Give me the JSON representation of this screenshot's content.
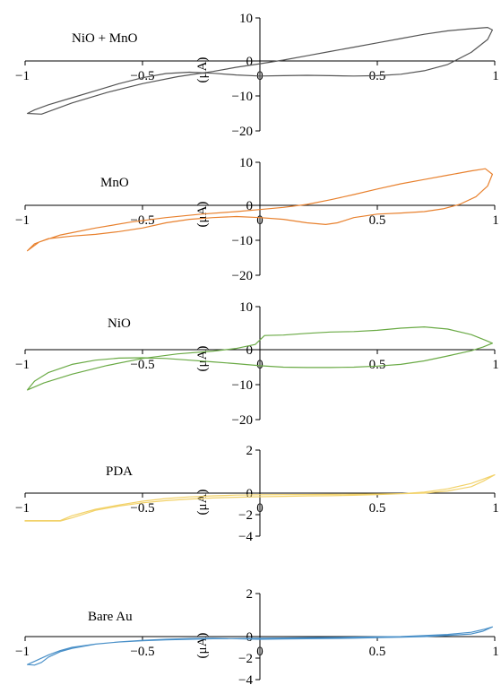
{
  "chart_data": [
    {
      "type": "line",
      "label": "NiO + MnO",
      "color": "#555555",
      "unit_label": "(μA)",
      "xlim": [
        -1,
        1
      ],
      "ylim": [
        -20,
        10
      ],
      "x_ticks": [
        -1,
        -0.5,
        0,
        0.5,
        1
      ],
      "x_tick_labels": [
        "−1",
        "−0.5",
        "0",
        "0.5",
        "1"
      ],
      "y_ticks": [
        10,
        0,
        -10,
        -20
      ],
      "y_tick_labels": [
        "10",
        "0",
        "−10",
        "−20"
      ],
      "x": [
        -0.99,
        -0.93,
        -0.8,
        -0.65,
        -0.5,
        -0.35,
        -0.2,
        -0.1,
        0,
        0.1,
        0.2,
        0.3,
        0.4,
        0.5,
        0.6,
        0.7,
        0.8,
        0.9,
        0.97,
        0.99,
        0.97,
        0.9,
        0.8,
        0.7,
        0.6,
        0.5,
        0.4,
        0.3,
        0.2,
        0.1,
        0,
        -0.1,
        -0.2,
        -0.3,
        -0.4,
        -0.5,
        -0.6,
        -0.7,
        -0.8,
        -0.9,
        -0.96,
        -0.99
      ],
      "y": [
        -15,
        -15.2,
        -12,
        -9,
        -6.5,
        -4.5,
        -3,
        -1.8,
        -0.8,
        0.2,
        1.2,
        2.2,
        3.2,
        4.2,
        5.2,
        6.2,
        7,
        7.5,
        7.8,
        7.2,
        5,
        2,
        -1,
        -2.8,
        -3.8,
        -4.2,
        -4.3,
        -4.2,
        -4.1,
        -4.2,
        -4.3,
        -4,
        -3.5,
        -3.2,
        -3.6,
        -4.8,
        -6.5,
        -8.5,
        -10.5,
        -12.5,
        -14,
        -15
      ]
    },
    {
      "type": "line",
      "label": "MnO",
      "color": "#e8812e",
      "unit_label": "(μA)",
      "xlim": [
        -1,
        1
      ],
      "ylim": [
        -20,
        10
      ],
      "x_ticks": [
        -1,
        -0.5,
        0,
        0.5,
        1
      ],
      "x_tick_labels": [
        "−1",
        "−0.5",
        "0",
        "0.5",
        "1"
      ],
      "y_ticks": [
        10,
        0,
        -10,
        -20
      ],
      "y_tick_labels": [
        "10",
        "0",
        "−10",
        "−20"
      ],
      "x": [
        -0.99,
        -0.94,
        -0.85,
        -0.7,
        -0.55,
        -0.4,
        -0.25,
        -0.1,
        0,
        0.1,
        0.2,
        0.3,
        0.4,
        0.5,
        0.6,
        0.7,
        0.8,
        0.9,
        0.96,
        0.99,
        0.97,
        0.92,
        0.85,
        0.78,
        0.7,
        0.6,
        0.5,
        0.4,
        0.33,
        0.28,
        0.2,
        0.1,
        0,
        -0.1,
        -0.2,
        -0.3,
        -0.4,
        -0.5,
        -0.6,
        -0.7,
        -0.8,
        -0.9,
        -0.96,
        -0.99
      ],
      "y": [
        -13,
        -10.5,
        -8.5,
        -6.5,
        -4.8,
        -3.5,
        -2.5,
        -1.8,
        -1.2,
        -0.6,
        0.2,
        1.3,
        2.5,
        3.8,
        5,
        6,
        7,
        8,
        8.5,
        7.2,
        4.5,
        2,
        0.2,
        -1,
        -1.8,
        -2.2,
        -2.5,
        -3.5,
        -5,
        -5.5,
        -5,
        -4,
        -3.5,
        -3.2,
        -3.5,
        -4,
        -5,
        -6.5,
        -7.5,
        -8.3,
        -8.8,
        -9.5,
        -11,
        -13
      ]
    },
    {
      "type": "line",
      "label": "NiO",
      "color": "#6aaa45",
      "unit_label": "(μA)",
      "xlim": [
        -1,
        1
      ],
      "ylim": [
        -20,
        10
      ],
      "x_ticks": [
        -1,
        -0.5,
        0,
        0.5,
        1
      ],
      "x_tick_labels": [
        "−1",
        "−0.5",
        "0",
        "0.5",
        "1"
      ],
      "y_ticks": [
        10,
        0,
        -10,
        -20
      ],
      "y_tick_labels": [
        "10",
        "0",
        "−10",
        "−20"
      ],
      "x": [
        -0.99,
        -0.92,
        -0.8,
        -0.65,
        -0.5,
        -0.35,
        -0.2,
        -0.1,
        -0.02,
        0.02,
        0.1,
        0.2,
        0.3,
        0.4,
        0.5,
        0.6,
        0.7,
        0.8,
        0.9,
        0.96,
        0.99,
        0.95,
        0.9,
        0.8,
        0.7,
        0.6,
        0.5,
        0.4,
        0.3,
        0.2,
        0.1,
        0,
        -0.1,
        -0.2,
        -0.3,
        -0.4,
        -0.5,
        -0.6,
        -0.7,
        -0.8,
        -0.9,
        -0.96,
        -0.99
      ],
      "y": [
        -11.5,
        -9.5,
        -7,
        -4.5,
        -2.5,
        -1.2,
        -0.4,
        0.3,
        1.2,
        3.3,
        3.4,
        3.8,
        4.1,
        4.2,
        4.5,
        5,
        5.3,
        4.8,
        3.5,
        2.2,
        1.5,
        0.6,
        -0.3,
        -1.8,
        -3.2,
        -4.2,
        -4.7,
        -5,
        -5.1,
        -5.1,
        -5,
        -4.6,
        -4,
        -3.5,
        -3,
        -2.5,
        -2.3,
        -2.4,
        -3,
        -4.2,
        -6.5,
        -9,
        -11.5
      ]
    },
    {
      "type": "line",
      "label": "PDA",
      "color": "#f2d26a",
      "unit_label": "(μA)",
      "xlim": [
        -1,
        1
      ],
      "ylim": [
        -4,
        2
      ],
      "x_ticks": [
        -1,
        -0.5,
        0,
        0.5,
        1
      ],
      "x_tick_labels": [
        "−1",
        "−0.5",
        "0",
        "0.5",
        "1"
      ],
      "y_ticks": [
        2,
        0,
        -2,
        -4
      ],
      "y_tick_labels": [
        "2",
        "0",
        "−2",
        "−4"
      ],
      "x": [
        -1,
        -0.95,
        -0.85,
        -0.8,
        -0.7,
        -0.6,
        -0.5,
        -0.4,
        -0.3,
        -0.2,
        -0.1,
        0,
        0.1,
        0.2,
        0.3,
        0.4,
        0.5,
        0.6,
        0.7,
        0.8,
        0.9,
        0.95,
        1,
        0.95,
        0.9,
        0.8,
        0.7,
        0.6,
        0.5,
        0.4,
        0.3,
        0.2,
        0.1,
        0,
        -0.1,
        -0.2,
        -0.3,
        -0.4,
        -0.5,
        -0.6,
        -0.7,
        -0.8,
        -0.85,
        -0.95,
        -1
      ],
      "y": [
        -2.6,
        -2.6,
        -2.6,
        -2.3,
        -1.6,
        -1.2,
        -0.9,
        -0.7,
        -0.55,
        -0.45,
        -0.38,
        -0.33,
        -0.3,
        -0.27,
        -0.24,
        -0.2,
        -0.14,
        -0.06,
        0.05,
        0.2,
        0.45,
        0.65,
        0.85,
        0.55,
        0.3,
        0.1,
        0,
        -0.05,
        -0.08,
        -0.1,
        -0.12,
        -0.13,
        -0.14,
        -0.15,
        -0.18,
        -0.25,
        -0.35,
        -0.5,
        -0.75,
        -1.1,
        -1.5,
        -2.1,
        -2.55,
        -2.55,
        -2.55
      ]
    },
    {
      "type": "line",
      "label": "Bare Au",
      "color": "#4a90c8",
      "unit_label": "(μA)",
      "xlim": [
        -1,
        1
      ],
      "ylim": [
        -4,
        2
      ],
      "x_ticks": [
        -1,
        -0.5,
        0,
        0.5,
        1
      ],
      "x_tick_labels": [
        "−1",
        "−0.5",
        "0",
        "0.5",
        "1"
      ],
      "y_ticks": [
        2,
        0,
        -2,
        -4
      ],
      "y_tick_labels": [
        "2",
        "0",
        "−2",
        "−4"
      ],
      "x": [
        -0.99,
        -0.96,
        -0.93,
        -0.9,
        -0.85,
        -0.8,
        -0.7,
        -0.6,
        -0.5,
        -0.4,
        -0.3,
        -0.2,
        -0.1,
        0,
        0.1,
        0.2,
        0.3,
        0.4,
        0.5,
        0.6,
        0.7,
        0.8,
        0.9,
        0.96,
        0.99,
        0.95,
        0.9,
        0.8,
        0.7,
        0.6,
        0.5,
        0.4,
        0.3,
        0.2,
        0.1,
        0,
        -0.1,
        -0.2,
        -0.3,
        -0.4,
        -0.5,
        -0.6,
        -0.7,
        -0.8,
        -0.85,
        -0.9,
        -0.95,
        -0.99
      ],
      "y": [
        -2.6,
        -2.65,
        -2.4,
        -1.9,
        -1.4,
        -1.1,
        -0.7,
        -0.5,
        -0.38,
        -0.3,
        -0.25,
        -0.2,
        -0.18,
        -0.15,
        -0.13,
        -0.1,
        -0.08,
        -0.05,
        -0.02,
        0,
        0.05,
        0.1,
        0.2,
        0.35,
        0.45,
        0.25,
        0.12,
        0.05,
        0,
        -0.05,
        -0.1,
        -0.15,
        -0.18,
        -0.2,
        -0.22,
        -0.25,
        -0.2,
        -0.15,
        -0.18,
        -0.25,
        -0.35,
        -0.5,
        -0.7,
        -1,
        -1.3,
        -1.7,
        -2.2,
        -2.6
      ]
    }
  ]
}
